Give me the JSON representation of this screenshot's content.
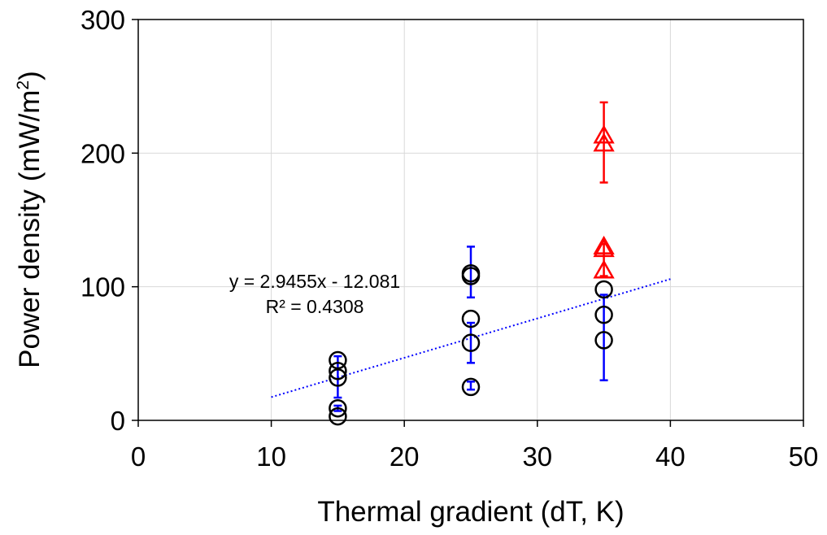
{
  "chart_data": {
    "type": "scatter",
    "title": "",
    "xlabel": "Thermal gradient (dT, K)",
    "ylabel_main": "Power density (mW/m",
    "ylabel_sup": "2",
    "ylabel_close": ")",
    "xlim": [
      0,
      50
    ],
    "ylim": [
      0,
      300
    ],
    "x_ticks": [
      "0",
      "10",
      "20",
      "30",
      "40",
      "50"
    ],
    "y_ticks": [
      "0",
      "100",
      "200",
      "300"
    ],
    "grid": true,
    "colors": {
      "circles": "#000000",
      "triangles": "#ff0000",
      "trendline": "#0000ff",
      "blue_errorbars": "#0000ff",
      "red_errorbars": "#ff0000",
      "grid": "#d9d9d9",
      "axes": "#000000"
    },
    "series": [
      {
        "marker": "circle",
        "color": "#000000",
        "points": [
          {
            "x": 15,
            "y": 45
          },
          {
            "x": 15,
            "y": 37
          },
          {
            "x": 15,
            "y": 32
          },
          {
            "x": 15,
            "y": 9
          },
          {
            "x": 15,
            "y": 3
          },
          {
            "x": 25,
            "y": 110
          },
          {
            "x": 25,
            "y": 108
          },
          {
            "x": 25,
            "y": 76
          },
          {
            "x": 25,
            "y": 58
          },
          {
            "x": 25,
            "y": 25
          },
          {
            "x": 35,
            "y": 98
          },
          {
            "x": 35,
            "y": 79
          },
          {
            "x": 35,
            "y": 60
          }
        ]
      },
      {
        "marker": "triangle",
        "color": "#ff0000",
        "points": [
          {
            "x": 35,
            "y": 213
          },
          {
            "x": 35,
            "y": 207
          },
          {
            "x": 35,
            "y": 130
          },
          {
            "x": 35,
            "y": 128
          },
          {
            "x": 35,
            "y": 112
          }
        ]
      }
    ],
    "error_bars": [
      {
        "x": 15,
        "low": 17,
        "high": 48,
        "color": "#0000ff"
      },
      {
        "x": 15,
        "low": 7,
        "high": 11,
        "color": "#0000ff"
      },
      {
        "x": 25,
        "low": 92,
        "high": 130,
        "color": "#0000ff"
      },
      {
        "x": 25,
        "low": 43,
        "high": 73,
        "color": "#0000ff"
      },
      {
        "x": 25,
        "low": 23,
        "high": 29,
        "color": "#0000ff"
      },
      {
        "x": 35,
        "low": 30,
        "high": 94,
        "color": "#0000ff"
      },
      {
        "x": 35,
        "low": 178,
        "high": 238,
        "color": "#ff0000"
      },
      {
        "x": 35,
        "low": 108,
        "high": 132,
        "color": "#ff0000"
      }
    ],
    "trendline": {
      "slope": 2.9455,
      "intercept": -12.081,
      "x_range": [
        10,
        40
      ],
      "style": "dotted",
      "color": "#0000ff",
      "equation_label": "y = 2.9455x - 12.081",
      "r2_label": "R² = 0.4308"
    }
  }
}
